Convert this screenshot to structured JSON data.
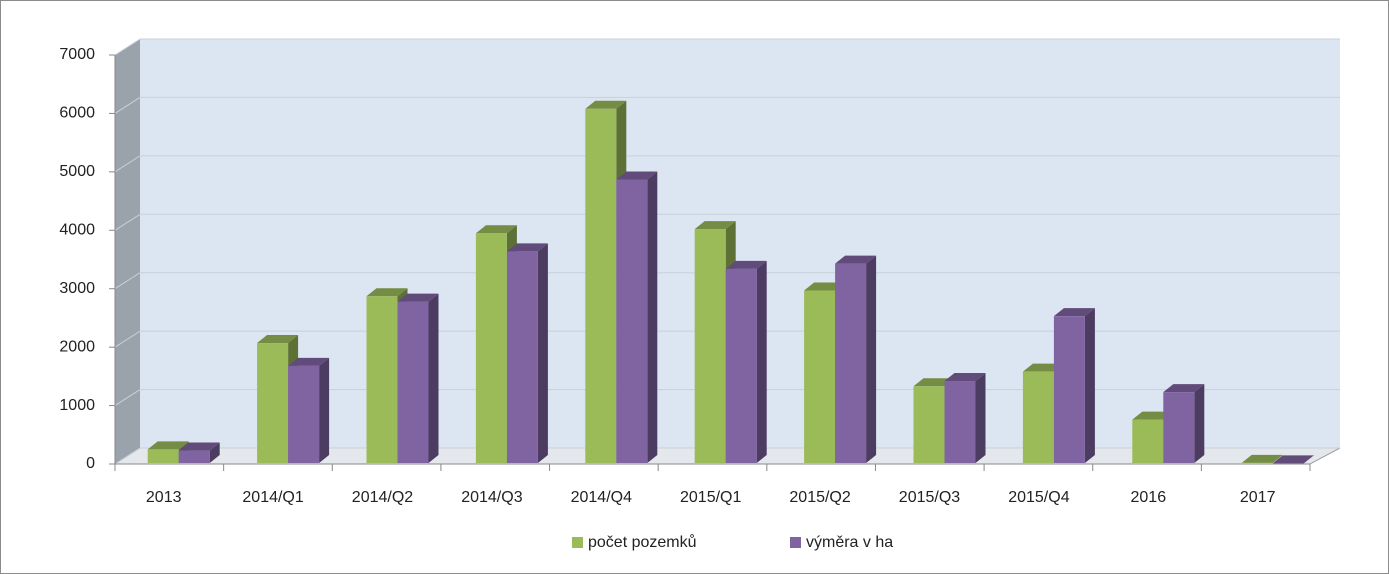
{
  "chart_data": {
    "type": "bar3d",
    "categories": [
      "2013",
      "2014/Q1",
      "2014/Q2",
      "2014/Q3",
      "2014/Q4",
      "2015/Q1",
      "2015/Q2",
      "2015/Q3",
      "2015/Q4",
      "2016",
      "2017"
    ],
    "series": [
      {
        "name": "počet pozemků",
        "color": "#9bbb59",
        "values": [
          250,
          2070,
          2870,
          3950,
          6080,
          4020,
          2970,
          1330,
          1580,
          760,
          20
        ]
      },
      {
        "name": "výměra v ha",
        "color": "#8064a2",
        "values": [
          230,
          1680,
          2780,
          3640,
          4870,
          3340,
          3430,
          1420,
          2530,
          1230,
          10
        ]
      }
    ],
    "ylim": [
      0,
      7000
    ],
    "yticks": [
      0,
      1000,
      2000,
      3000,
      4000,
      5000,
      6000,
      7000
    ],
    "grid": true,
    "legend": "bottom"
  }
}
